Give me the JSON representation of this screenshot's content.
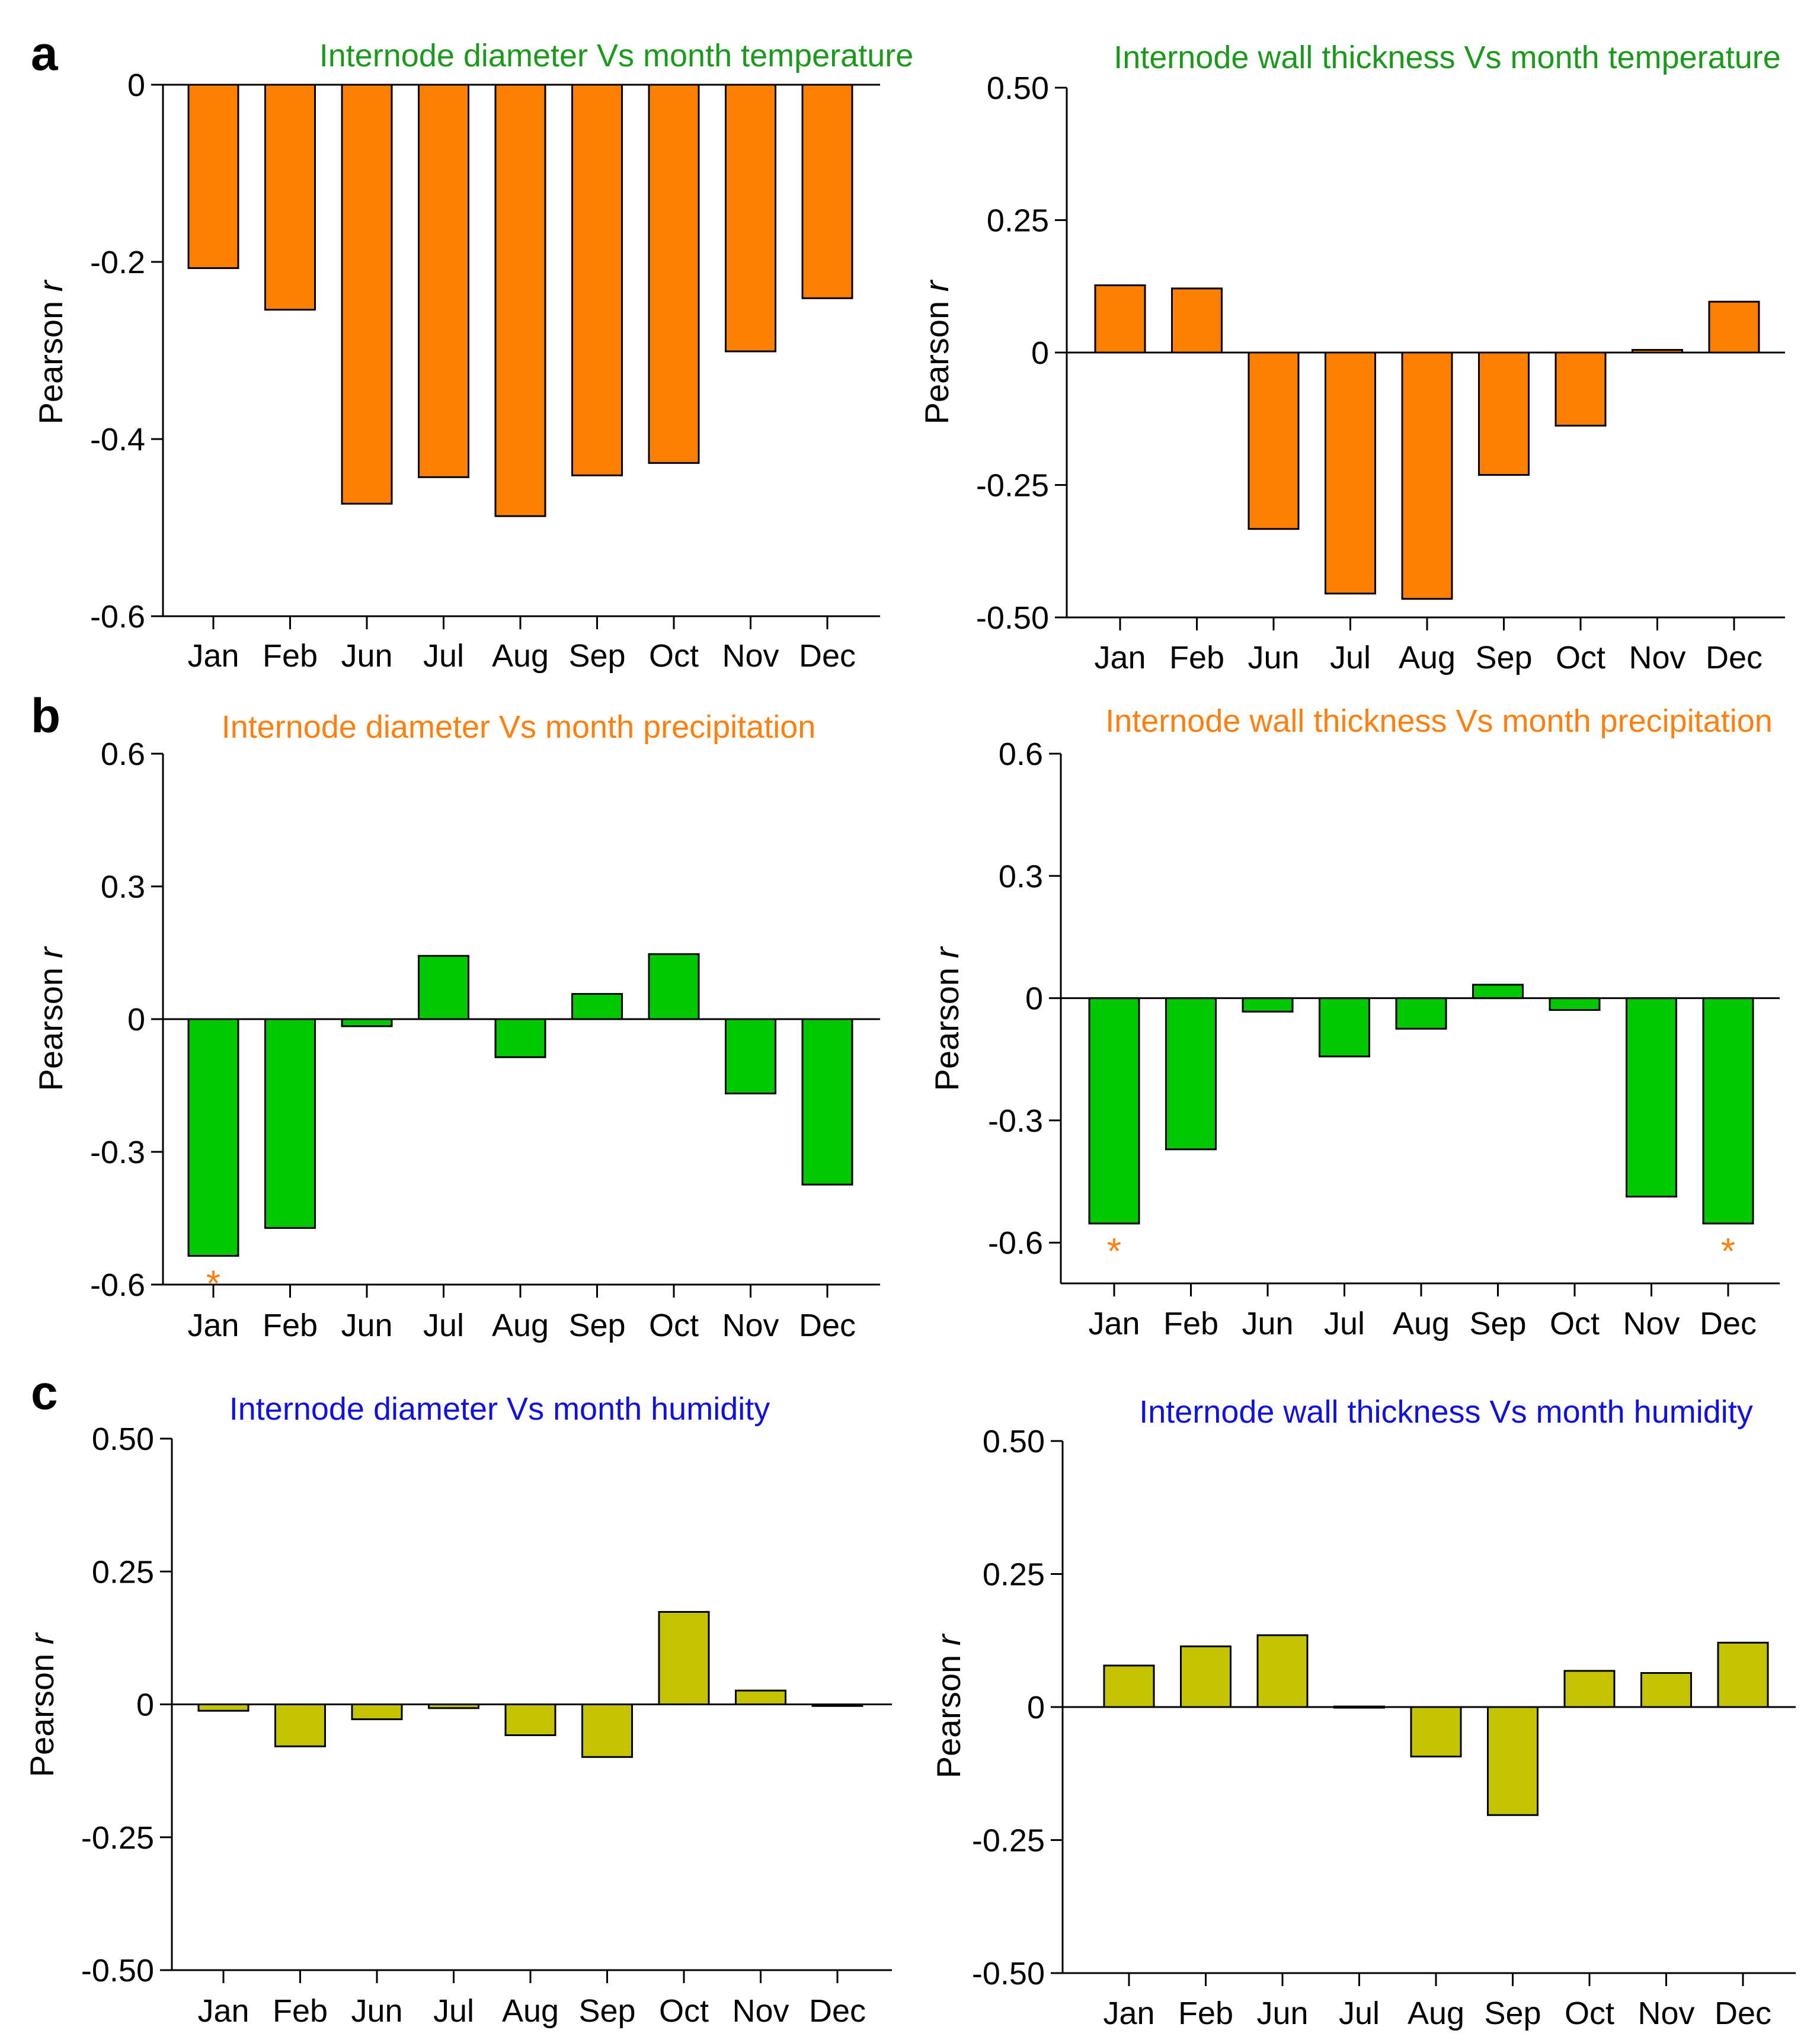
{
  "panel_labels": {
    "a": "a",
    "b": "b",
    "c": "c"
  },
  "colors": {
    "temperature_title": "#1a9a1a",
    "temperature_bar": "#ff8000",
    "precipitation_title": "#ff7f0e",
    "precipitation_bar": "#00c800",
    "humidity_title": "#1010e0",
    "humidity_bar": "#c3c300",
    "significance": "#ff7f0e"
  },
  "chart_data": [
    {
      "id": "a-left",
      "type": "bar",
      "title": "Internode diameter Vs month temperature",
      "ylabel": "Pearson r",
      "categories": [
        "Jan",
        "Feb",
        "Jun",
        "Jul",
        "Aug",
        "Sep",
        "Oct",
        "Nov",
        "Dec"
      ],
      "values": [
        -0.207,
        -0.254,
        -0.473,
        -0.443,
        -0.487,
        -0.441,
        -0.427,
        -0.301,
        -0.241
      ],
      "ylim": [
        -0.6,
        0
      ],
      "yticks": [
        0,
        -0.2,
        -0.4,
        -0.6
      ],
      "ytick_labels": [
        "0",
        "-0.2",
        "-0.4",
        "-0.6"
      ],
      "significant": []
    },
    {
      "id": "a-right",
      "type": "bar",
      "title": "Internode wall thickness Vs month temperature",
      "ylabel": "Pearson r",
      "categories": [
        "Jan",
        "Feb",
        "Jun",
        "Jul",
        "Aug",
        "Sep",
        "Oct",
        "Nov",
        "Dec"
      ],
      "values": [
        0.127,
        0.121,
        -0.333,
        -0.455,
        -0.465,
        -0.231,
        -0.138,
        0.005,
        0.096
      ],
      "ylim": [
        -0.5,
        0.5
      ],
      "yticks": [
        0.5,
        0.25,
        0,
        -0.25,
        -0.5
      ],
      "ytick_labels": [
        "0.50",
        "0.25",
        "0",
        "-0.25",
        "-0.50"
      ],
      "significant": []
    },
    {
      "id": "b-left",
      "type": "bar",
      "title": "Internode diameter Vs month precipitation",
      "ylabel": "Pearson r",
      "categories": [
        "Jan",
        "Feb",
        "Jun",
        "Jul",
        "Aug",
        "Sep",
        "Oct",
        "Nov",
        "Dec"
      ],
      "values": [
        -0.535,
        -0.472,
        -0.016,
        0.143,
        -0.086,
        0.057,
        0.147,
        -0.168,
        -0.374
      ],
      "ylim": [
        -0.6,
        0.6
      ],
      "yticks": [
        0.6,
        0.3,
        0,
        -0.3,
        -0.6
      ],
      "ytick_labels": [
        "0.6",
        "0.3",
        "0",
        "-0.3",
        "-0.6"
      ],
      "significant": [
        "Jan"
      ]
    },
    {
      "id": "b-right",
      "type": "bar",
      "title": "Internode wall thickness Vs month precipitation",
      "ylabel": "Pearson r",
      "categories": [
        "Jan",
        "Feb",
        "Jun",
        "Jul",
        "Aug",
        "Sep",
        "Oct",
        "Nov",
        "Dec"
      ],
      "values": [
        -0.553,
        -0.371,
        -0.033,
        -0.143,
        -0.075,
        0.033,
        -0.029,
        -0.487,
        -0.553
      ],
      "ylim": [
        -0.7,
        0.6
      ],
      "yticks": [
        0.6,
        0.3,
        0,
        -0.3,
        -0.6
      ],
      "ytick_labels": [
        "0.6",
        "0.3",
        "0",
        "-0.3",
        "-0.6"
      ],
      "significant": [
        "Jan",
        "Dec"
      ]
    },
    {
      "id": "c-left",
      "type": "bar",
      "title": "Internode diameter Vs month humidity",
      "ylabel": "Pearson r",
      "categories": [
        "Jan",
        "Feb",
        "Jun",
        "Jul",
        "Aug",
        "Sep",
        "Oct",
        "Nov",
        "Dec"
      ],
      "values": [
        -0.012,
        -0.079,
        -0.028,
        -0.007,
        -0.058,
        -0.099,
        0.174,
        0.026,
        -0.003
      ],
      "ylim": [
        -0.5,
        0.5
      ],
      "yticks": [
        0.5,
        0.25,
        0,
        -0.25,
        -0.5
      ],
      "ytick_labels": [
        "0.50",
        "0.25",
        "0",
        "-0.25",
        "-0.50"
      ],
      "significant": []
    },
    {
      "id": "c-right",
      "type": "bar",
      "title": "Internode wall thickness Vs month humidity",
      "ylabel": "Pearson r",
      "categories": [
        "Jan",
        "Feb",
        "Jun",
        "Jul",
        "Aug",
        "Sep",
        "Oct",
        "Nov",
        "Dec"
      ],
      "values": [
        0.078,
        0.114,
        0.135,
        0.001,
        -0.093,
        -0.203,
        0.068,
        0.064,
        0.121
      ],
      "ylim": [
        -0.5,
        0.5
      ],
      "yticks": [
        0.5,
        0.25,
        0,
        -0.25,
        -0.5
      ],
      "ytick_labels": [
        "0.50",
        "0.25",
        "0",
        "-0.25",
        "-0.50"
      ],
      "significant": []
    }
  ]
}
